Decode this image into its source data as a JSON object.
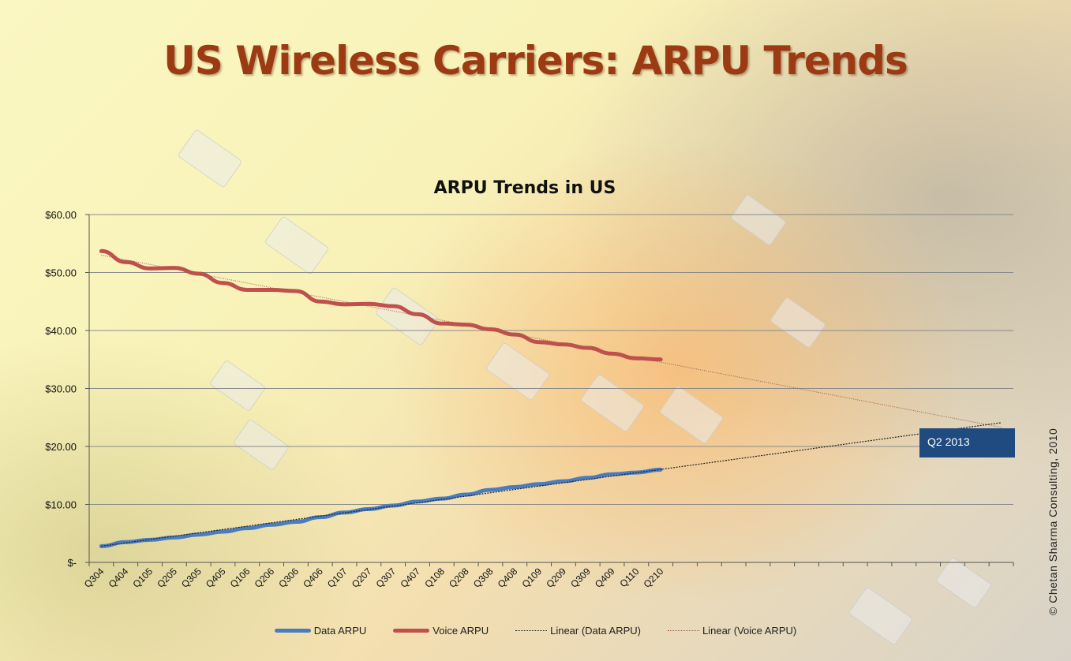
{
  "slide": {
    "title": "US Wireless Carriers: ARPU Trends",
    "copyright": "© Chetan  Sharma Consulting, 2010",
    "callout": "Q2 2013"
  },
  "chart_data": {
    "type": "line",
    "title": "ARPU Trends in US",
    "xlabel": "",
    "ylabel": "",
    "ylim": [
      0,
      60
    ],
    "yticks": [
      "$-",
      "$10.00",
      "$20.00",
      "$30.00",
      "$40.00",
      "$50.00",
      "$60.00"
    ],
    "categories": [
      "Q304",
      "Q404",
      "Q105",
      "Q205",
      "Q305",
      "Q405",
      "Q106",
      "Q206",
      "Q306",
      "Q406",
      "Q107",
      "Q207",
      "Q307",
      "Q407",
      "Q108",
      "Q208",
      "Q308",
      "Q408",
      "Q109",
      "Q209",
      "Q309",
      "Q409",
      "Q110",
      "Q210"
    ],
    "total_periods": 38,
    "grid": true,
    "legend_position": "bottom",
    "series": [
      {
        "name": "Data ARPU",
        "color": "#4a7cc0",
        "values": [
          2.8,
          3.5,
          3.9,
          4.3,
          4.8,
          5.3,
          5.9,
          6.5,
          7.0,
          7.8,
          8.6,
          9.2,
          9.8,
          10.5,
          11.0,
          11.7,
          12.5,
          13.0,
          13.5,
          14.0,
          14.6,
          15.2,
          15.5,
          16.0
        ]
      },
      {
        "name": "Voice ARPU",
        "color": "#c0504d",
        "values": [
          53.7,
          51.8,
          50.7,
          50.8,
          49.8,
          48.2,
          47.0,
          47.0,
          46.8,
          45.0,
          44.5,
          44.6,
          44.2,
          42.8,
          41.2,
          41.0,
          40.2,
          39.3,
          38.0,
          37.6,
          37.0,
          36.0,
          35.2,
          35.0
        ]
      },
      {
        "name": "Linear (Data ARPU)",
        "color": "#222222",
        "trend": true,
        "start": 2.8,
        "end": 24.1
      },
      {
        "name": "Linear (Voice ARPU)",
        "color": "#a05a50",
        "trend": true,
        "start": 53.0,
        "end": 23.3
      }
    ]
  }
}
